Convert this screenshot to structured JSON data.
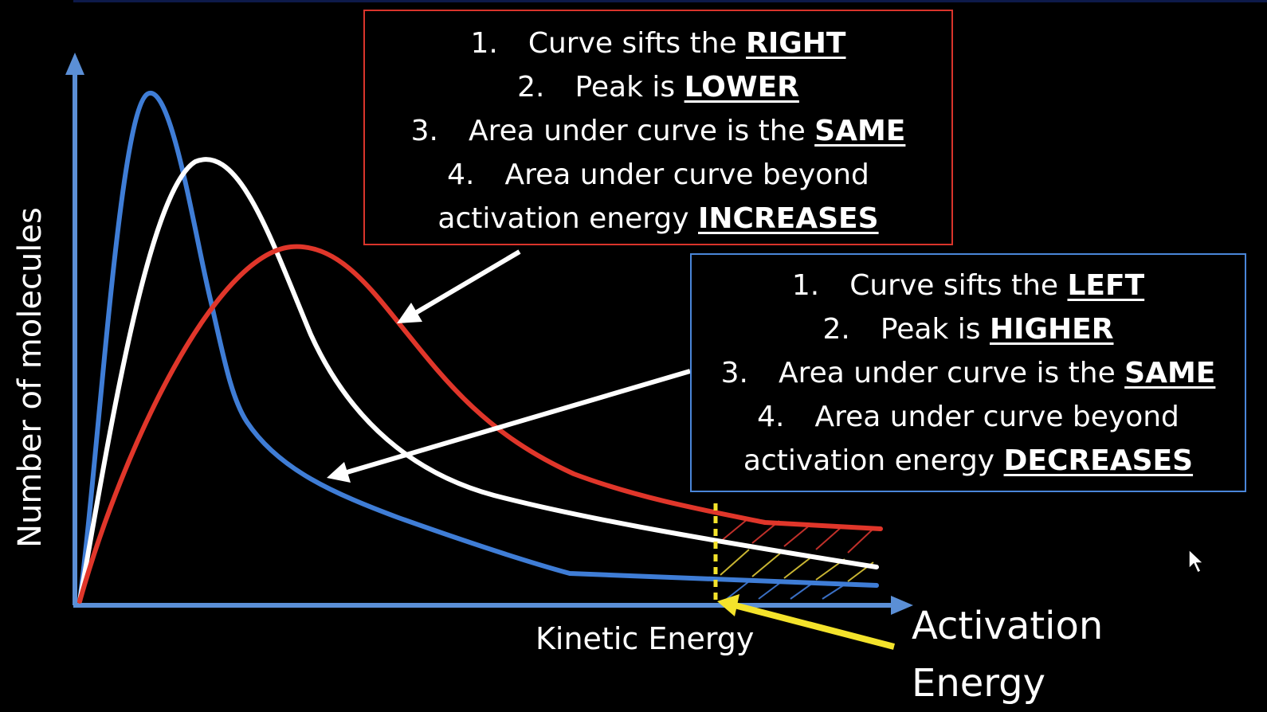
{
  "axes": {
    "y_label": "Number of molecules",
    "x_label": "Kinetic Energy"
  },
  "activation_energy_label": [
    "Activation",
    "Energy"
  ],
  "colors": {
    "background": "#000000",
    "axis": "#5b8fd6",
    "low_temperature_curve": "#3f7dd6",
    "mid_temperature_curve": "#ffffff",
    "high_temperature_curve": "#e0362a",
    "activation_marker": "#f4e32b",
    "red_box_border": "#d9342b",
    "blue_box_border": "#4a86d9"
  },
  "red_box": {
    "items": [
      {
        "num": "1.",
        "text": "Curve sifts the ",
        "keyword": "RIGHT"
      },
      {
        "num": "2.",
        "text": "Peak is ",
        "keyword": "LOWER"
      },
      {
        "num": "3.",
        "text": "Area under curve is the ",
        "keyword": "SAME"
      },
      {
        "num": "4.",
        "text": "Area under curve beyond",
        "keyword": ""
      },
      {
        "num": "",
        "text": "activation energy ",
        "keyword": "INCREASES"
      }
    ]
  },
  "blue_box": {
    "items": [
      {
        "num": "1.",
        "text": "Curve sifts the ",
        "keyword": "LEFT"
      },
      {
        "num": "2.",
        "text": "Peak is ",
        "keyword": "HIGHER"
      },
      {
        "num": "3.",
        "text": "Area under curve is the ",
        "keyword": "SAME"
      },
      {
        "num": "4.",
        "text": "Area under curve beyond",
        "keyword": ""
      },
      {
        "num": "",
        "text": "activation energy ",
        "keyword": "DECREASES"
      }
    ]
  },
  "icons": [
    "mouse-cursor-icon"
  ]
}
